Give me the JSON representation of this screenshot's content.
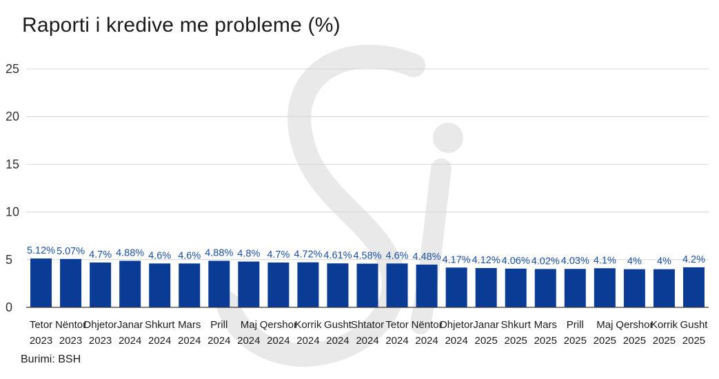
{
  "title": "Raporti i kredive me probleme (%)",
  "source": "Burimi: BSH",
  "colors": {
    "bar": "#0a3c96",
    "label": "#1a4fa0",
    "grid": "#d4d4d4",
    "axis": "#333333",
    "watermark": "#e9e9e9"
  },
  "chart_data": {
    "type": "bar",
    "title": "Raporti i kredive me probleme (%)",
    "xlabel": "",
    "ylabel": "",
    "ylim": [
      0,
      25
    ],
    "yticks": [
      0,
      5,
      10,
      15,
      20,
      25
    ],
    "grid": true,
    "categories": [
      [
        "Tetor",
        "2023"
      ],
      [
        "Nëntor",
        "2023"
      ],
      [
        "Dhjetor",
        "2023"
      ],
      [
        "Janar",
        "2024"
      ],
      [
        "Shkurt",
        "2024"
      ],
      [
        "Mars",
        "2024"
      ],
      [
        "Prill",
        "2024"
      ],
      [
        "Maj",
        "2024"
      ],
      [
        "Qershor",
        "2024"
      ],
      [
        "Korrik",
        "2024"
      ],
      [
        "Gusht",
        "2024"
      ],
      [
        "Shtator",
        "2024"
      ],
      [
        "Tetor",
        "2024"
      ],
      [
        "Nëntor",
        "2024"
      ],
      [
        "Dhjetor",
        "2024"
      ],
      [
        "Janar",
        "2025"
      ],
      [
        "Shkurt",
        "2025"
      ],
      [
        "Mars",
        "2025"
      ],
      [
        "Prill",
        "2025"
      ],
      [
        "Maj",
        "2025"
      ],
      [
        "Qershor",
        "2025"
      ],
      [
        "Korrik",
        "2025"
      ],
      [
        "Gusht",
        "2025"
      ]
    ],
    "values": [
      5.12,
      5.07,
      4.7,
      4.88,
      4.6,
      4.6,
      4.88,
      4.8,
      4.7,
      4.72,
      4.61,
      4.58,
      4.6,
      4.48,
      4.17,
      4.12,
      4.06,
      4.02,
      4.03,
      4.1,
      4,
      4,
      4.2
    ],
    "data_labels": [
      "5.12%",
      "5.07%",
      "4.7%",
      "4.88%",
      "4.6%",
      "4.6%",
      "4.88%",
      "4.8%",
      "4.7%",
      "4.72%",
      "4.61%",
      "4.58%",
      "4.6%",
      "4.48%",
      "4.17%",
      "4.12%",
      "4.06%",
      "4.02%",
      "4.03%",
      "4.1%",
      "4%",
      "4%",
      "4.2%"
    ]
  }
}
